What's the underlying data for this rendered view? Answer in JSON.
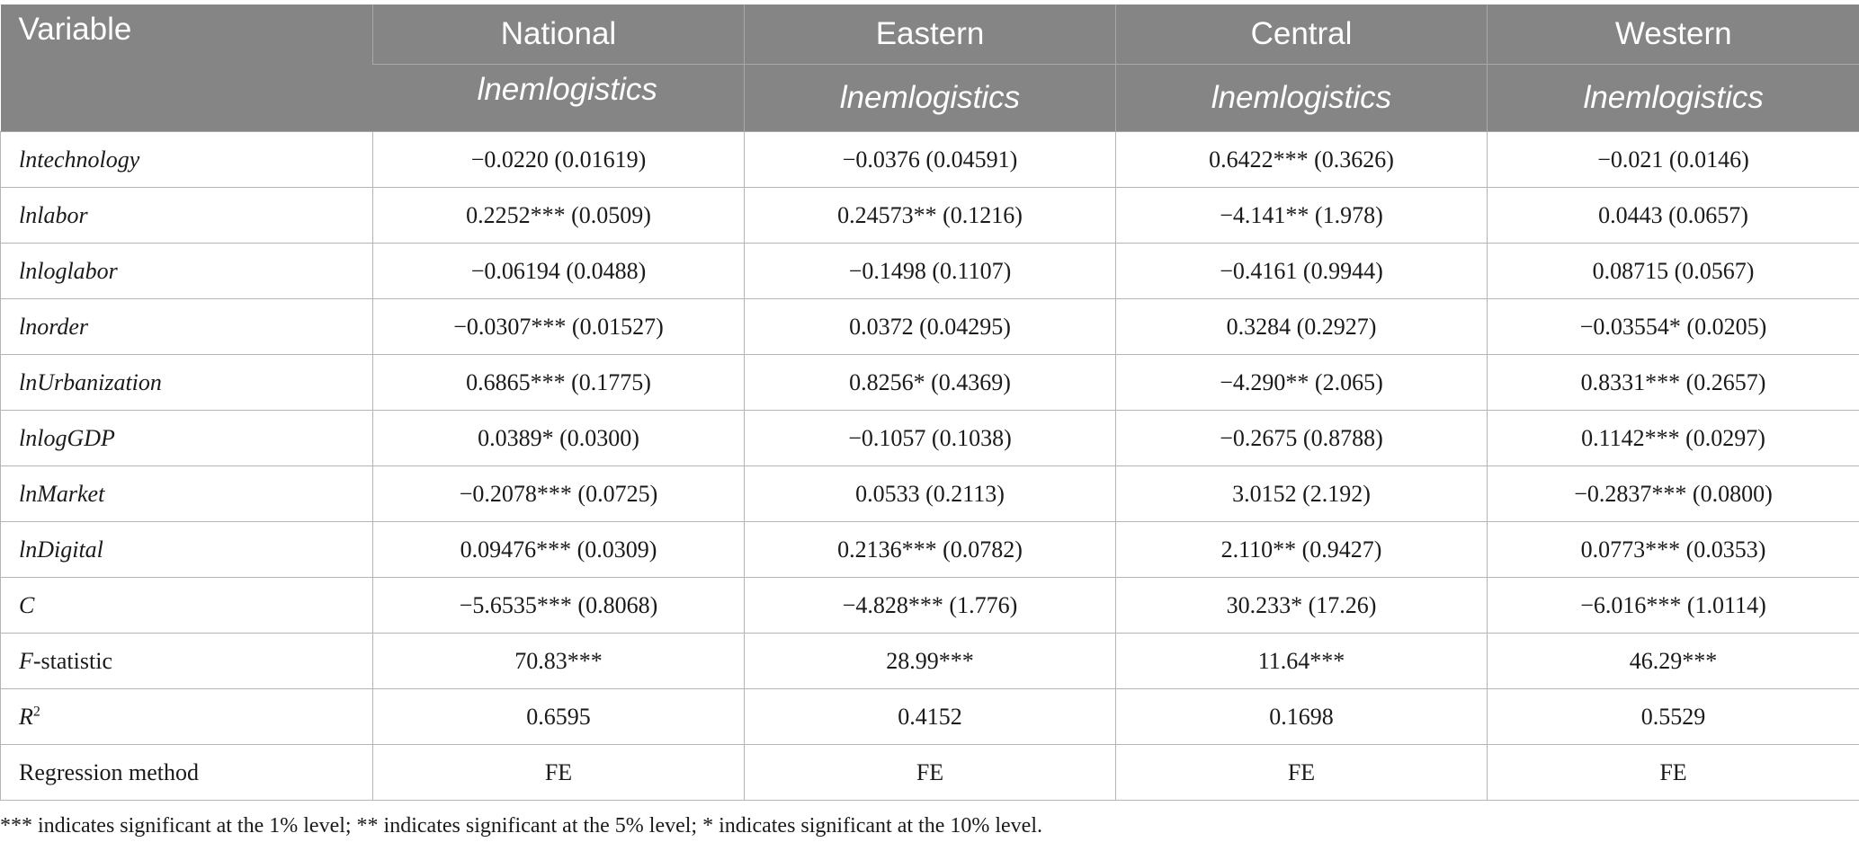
{
  "header": {
    "variable_label": "Variable",
    "groups": [
      "National",
      "Eastern",
      "Central",
      "Western"
    ],
    "dependent_variable": "lnemlogistics"
  },
  "rows": [
    {
      "name": "lntechnology",
      "style": "italic",
      "values": [
        "−0.0220 (0.01619)",
        "−0.0376 (0.04591)",
        "0.6422*** (0.3626)",
        "−0.021 (0.0146)"
      ]
    },
    {
      "name": "lnlabor",
      "style": "italic",
      "values": [
        "0.2252*** (0.0509)",
        "0.24573** (0.1216)",
        "−4.141** (1.978)",
        "0.0443 (0.0657)"
      ]
    },
    {
      "name": "lnloglabor",
      "style": "italic",
      "values": [
        "−0.06194 (0.0488)",
        "−0.1498 (0.1107)",
        "−0.4161 (0.9944)",
        "0.08715 (0.0567)"
      ]
    },
    {
      "name": "lnorder",
      "style": "italic",
      "values": [
        "−0.0307*** (0.01527)",
        "0.0372 (0.04295)",
        "0.3284 (0.2927)",
        "−0.03554* (0.0205)"
      ]
    },
    {
      "name": "lnUrbanization",
      "style": "italic",
      "values": [
        "0.6865*** (0.1775)",
        "0.8256* (0.4369)",
        "−4.290** (2.065)",
        "0.8331*** (0.2657)"
      ]
    },
    {
      "name": "lnlogGDP",
      "style": "italic",
      "values": [
        "0.0389* (0.0300)",
        "−0.1057 (0.1038)",
        "−0.2675 (0.8788)",
        "0.1142*** (0.0297)"
      ]
    },
    {
      "name": "lnMarket",
      "style": "italic",
      "values": [
        "−0.2078*** (0.0725)",
        "0.0533 (0.2113)",
        "3.0152 (2.192)",
        "−0.2837*** (0.0800)"
      ]
    },
    {
      "name": "lnDigital",
      "style": "italic",
      "values": [
        "0.09476*** (0.0309)",
        "0.2136*** (0.0782)",
        "2.110** (0.9427)",
        "0.0773*** (0.0353)"
      ]
    },
    {
      "name": "C",
      "style": "italic",
      "values": [
        "−5.6535*** (0.8068)",
        "−4.828*** (1.776)",
        "30.233* (17.26)",
        "−6.016*** (1.0114)"
      ]
    }
  ],
  "f_row": {
    "name_prefix": "F",
    "name_suffix": "-statistic",
    "values": [
      "70.83***",
      "28.99***",
      "11.64***",
      "46.29***"
    ]
  },
  "r2_row": {
    "name_base": "R",
    "name_sup": "2",
    "values": [
      "0.6595",
      "0.4152",
      "0.1698",
      "0.5529"
    ]
  },
  "method_row": {
    "name": "Regression method",
    "values": [
      "FE",
      "FE",
      "FE",
      "FE"
    ]
  },
  "footnote": "*** indicates significant at the 1% level; ** indicates significant at the 5% level; * indicates significant at the 10% level.",
  "colors": {
    "header_bg": "#858585",
    "header_text": "#ffffff",
    "grid": "#b5b5b5"
  }
}
